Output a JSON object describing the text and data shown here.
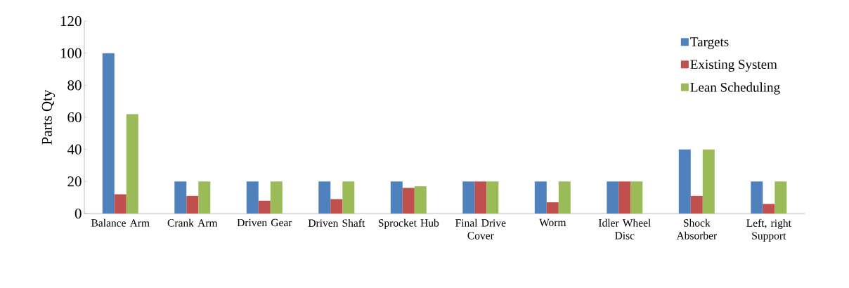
{
  "chart_data": {
    "type": "bar",
    "ylabel": "Parts Qty",
    "categories": [
      "Balance Arm",
      "Crank Arm",
      "Driven Gear",
      "Driven Shaft",
      "Sprocket Hub",
      "Final Drive Cover",
      "Worm",
      "Idler Wheel Disc",
      "Shock Absorber",
      "Left, right Support"
    ],
    "series": [
      {
        "name": "Targets",
        "color": "#4f81bd",
        "values": [
          100,
          20,
          20,
          20,
          20,
          20,
          20,
          20,
          40,
          20
        ]
      },
      {
        "name": "Existing System",
        "color": "#c0504d",
        "values": [
          12,
          11,
          8,
          9,
          16,
          20,
          7,
          20,
          11,
          6
        ]
      },
      {
        "name": "Lean Scheduling",
        "color": "#9bbb59",
        "values": [
          62,
          20,
          20,
          20,
          17,
          20,
          20,
          20,
          40,
          20
        ]
      }
    ],
    "ylim": [
      0,
      120
    ],
    "yticks": [
      0,
      20,
      40,
      60,
      80,
      100,
      120
    ],
    "grid": false,
    "legend": "top right"
  }
}
